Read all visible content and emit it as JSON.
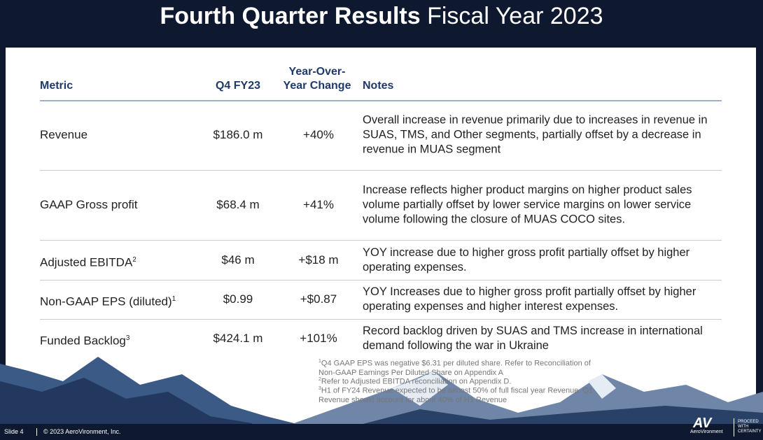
{
  "header": {
    "title_bold": "Fourth Quarter Results",
    "title_rest": "Fiscal Year 2023"
  },
  "table": {
    "columns": [
      "Metric",
      "Q4 FY23",
      "Year-Over-Year Change",
      "Notes"
    ],
    "rows": [
      {
        "metric": "Revenue",
        "sup": "",
        "value": "$186.0 m",
        "change": "+40%",
        "notes": "Overall increase in revenue primarily due to increases in revenue in SUAS, TMS, and Other segments, partially offset by a decrease in revenue in MUAS segment"
      },
      {
        "metric": "GAAP Gross profit",
        "sup": "",
        "value": "$68.4 m",
        "change": "+41%",
        "notes": "Increase reflects higher product margins on higher product sales volume partially offset by lower service margins on lower service volume following the closure of MUAS COCO sites."
      },
      {
        "metric": "Adjusted EBITDA",
        "sup": "2",
        "value": "$46 m",
        "change": "+$18 m",
        "notes": "YOY increase due to higher gross profit partially offset by higher operating expenses."
      },
      {
        "metric": "Non-GAAP EPS (diluted)",
        "sup": "1",
        "value": "$0.99",
        "change": "+$0.87",
        "notes": "YOY Increases due to higher gross profit partially offset by higher operating expenses and higher interest expenses."
      },
      {
        "metric": "Funded Backlog",
        "sup": "3",
        "value": "$424.1 m",
        "change": "+101%",
        "notes": "Record backlog driven by SUAS and TMS increase in international demand following the war in Ukraine"
      }
    ]
  },
  "footnotes": [
    {
      "num": "1",
      "text": "Q4 GAAP EPS was negative $6.31 per diluted share. Refer to Reconciliation of Non-GAAP Earnings Per Diluted Share on Appendix A"
    },
    {
      "num": "2",
      "text": "Refer to Adjusted EBITDA reconciliation on Appendix D."
    },
    {
      "num": "3",
      "text": "H1 of FY24 Revenue expected to be almost 50% of full fiscal year Revenue. Q1 Revenue should account for about 40% of H1 Revenue"
    }
  ],
  "footer": {
    "slide": "Slide 4",
    "copyright": "© 2023 AeroVironment, Inc.",
    "logo": "AV",
    "logo_name": "AeroVironment",
    "tagline": "PROCEED WITH CERTAINTY"
  }
}
